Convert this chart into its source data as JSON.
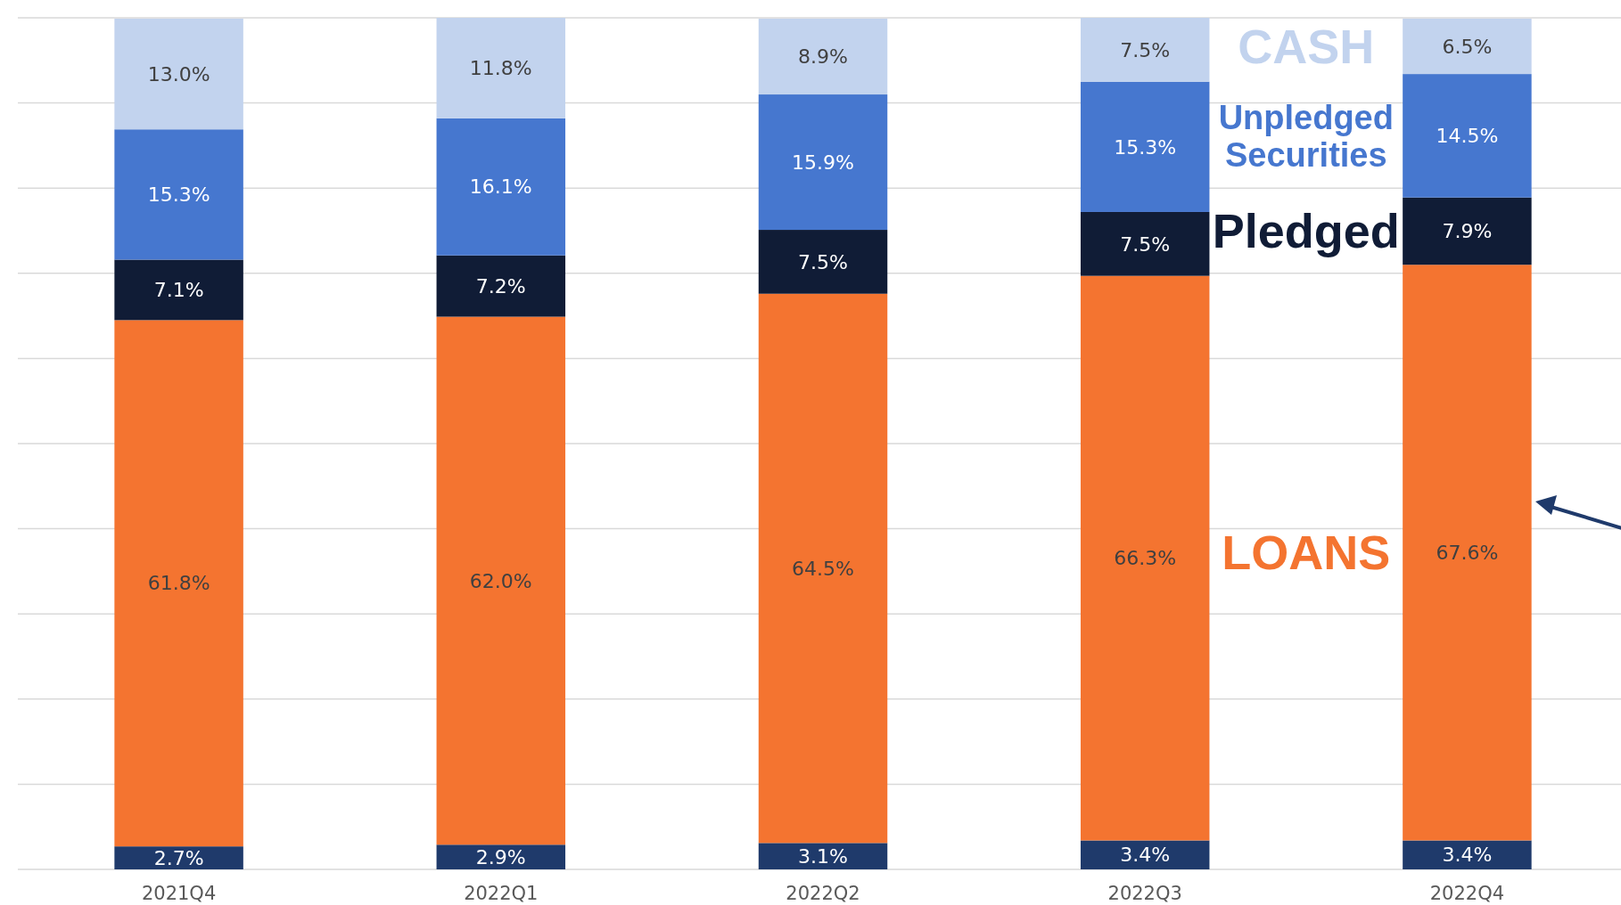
{
  "chart_data": {
    "type": "bar",
    "stacked": true,
    "categories": [
      "2021Q4",
      "2022Q1",
      "2022Q2",
      "2022Q3",
      "2022Q4"
    ],
    "series": [
      {
        "color": "#1f3a6b",
        "values": [
          2.7,
          2.9,
          3.1,
          3.4,
          3.4
        ],
        "value_labels": [
          "2.7%",
          "2.9%",
          "3.1%",
          "3.4%",
          "3.4%"
        ]
      },
      {
        "name": "LOANS",
        "color": "#f47430",
        "values": [
          61.8,
          62.0,
          64.5,
          66.3,
          67.6
        ],
        "value_labels": [
          "61.8%",
          "62.0%",
          "64.5%",
          "66.3%",
          "67.6%"
        ]
      },
      {
        "name": "Pledged",
        "color": "#101c36",
        "values": [
          7.1,
          7.2,
          7.5,
          7.5,
          7.9
        ],
        "value_labels": [
          "7.1%",
          "7.2%",
          "7.5%",
          "7.5%",
          "7.9%"
        ]
      },
      {
        "name": "Unpledged Securities",
        "color": "#4677cf",
        "values": [
          15.3,
          16.1,
          15.9,
          15.3,
          14.5
        ],
        "value_labels": [
          "15.3%",
          "16.1%",
          "15.9%",
          "15.3%",
          "14.5%"
        ]
      },
      {
        "name": "CASH",
        "color": "#c2d3ee",
        "values": [
          13.0,
          11.8,
          8.9,
          7.5,
          6.5
        ],
        "value_labels": [
          "13.0%",
          "11.8%",
          "8.9%",
          "7.5%",
          "6.5%"
        ]
      }
    ],
    "tick_labels": "x",
    "grid": "y"
  }
}
